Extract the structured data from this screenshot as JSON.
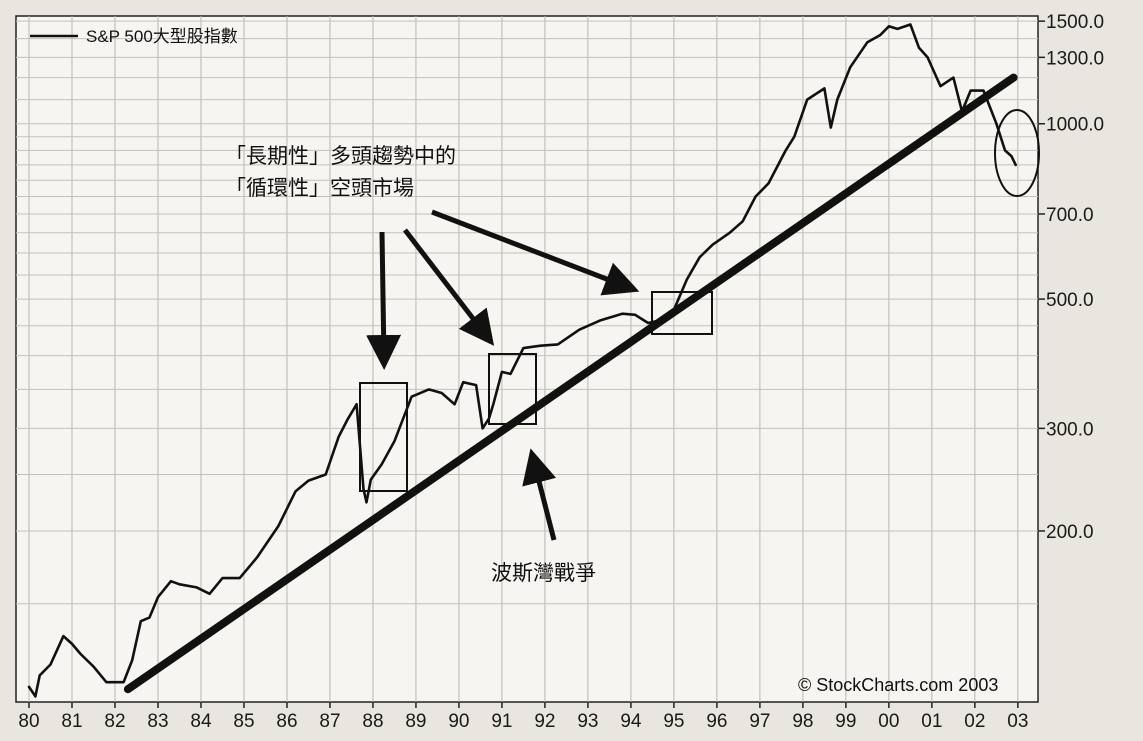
{
  "chart_data": {
    "type": "line",
    "title": "",
    "legend": {
      "label": "S&P 500大型股指數",
      "position": "top-left"
    },
    "y_scale": "log",
    "ylim": [
      105,
      1580
    ],
    "y_ticks": [
      "1500.0",
      "1300.0",
      "1000.0",
      "700.0",
      "500.0",
      "300.0",
      "200.0"
    ],
    "x_ticks": [
      "80",
      "81",
      "82",
      "83",
      "84",
      "85",
      "86",
      "87",
      "88",
      "89",
      "90",
      "91",
      "92",
      "93",
      "94",
      "95",
      "96",
      "97",
      "98",
      "99",
      "00",
      "01",
      "02",
      "03"
    ],
    "series": [
      {
        "name": "S&P 500大型股指數",
        "x": [
          1980.0,
          1980.15,
          1980.25,
          1980.5,
          1980.8,
          1981.0,
          1981.2,
          1981.5,
          1981.8,
          1982.2,
          1982.4,
          1982.6,
          1982.8,
          1983.0,
          1983.3,
          1983.5,
          1983.9,
          1984.2,
          1984.5,
          1984.9,
          1985.3,
          1985.8,
          1986.2,
          1986.5,
          1986.9,
          1987.2,
          1987.4,
          1987.62,
          1987.78,
          1987.85,
          1987.95,
          1988.2,
          1988.5,
          1988.9,
          1989.3,
          1989.6,
          1989.9,
          1990.1,
          1990.4,
          1990.55,
          1990.7,
          1990.8,
          1991.0,
          1991.2,
          1991.5,
          1991.9,
          1992.3,
          1992.8,
          1993.3,
          1993.8,
          1994.1,
          1994.4,
          1994.7,
          1994.95,
          1995.3,
          1995.6,
          1995.9,
          1996.3,
          1996.6,
          1996.9,
          1997.2,
          1997.6,
          1997.8,
          1998.1,
          1998.5,
          1998.65,
          1998.8,
          1999.1,
          1999.5,
          1999.8,
          2000.0,
          2000.2,
          2000.5,
          2000.7,
          2000.9,
          2001.2,
          2001.5,
          2001.7,
          2001.9,
          2002.2,
          2002.5,
          2002.7,
          2002.85,
          2002.95
        ],
        "values": [
          108,
          104,
          113,
          118,
          132,
          128,
          123,
          117,
          110,
          110,
          120,
          140,
          142,
          154,
          164,
          162,
          160,
          156,
          166,
          166,
          180,
          204,
          234,
          244,
          250,
          290,
          310,
          330,
          236,
          224,
          245,
          260,
          285,
          340,
          350,
          345,
          330,
          360,
          356,
          300,
          312,
          330,
          375,
          372,
          412,
          416,
          418,
          443,
          460,
          472,
          470,
          455,
          460,
          470,
          540,
          590,
          620,
          650,
          680,
          750,
          790,
          900,
          950,
          1100,
          1150,
          985,
          1100,
          1250,
          1380,
          1420,
          1470,
          1455,
          1480,
          1350,
          1300,
          1160,
          1200,
          1050,
          1140,
          1140,
          1000,
          900,
          880,
          850
        ]
      },
      {
        "name": "",
        "x": [
          1982.3,
          2002.9
        ],
        "values": [
          107,
          1200
        ]
      }
    ],
    "annotations": [
      {
        "text": "「長期性」多頭趨勢中的"
      },
      {
        "text": "「循環性」空頭市場"
      },
      {
        "text": "波斯灣戰爭"
      }
    ],
    "credit": "© StockCharts.com 2003",
    "grid": true
  }
}
